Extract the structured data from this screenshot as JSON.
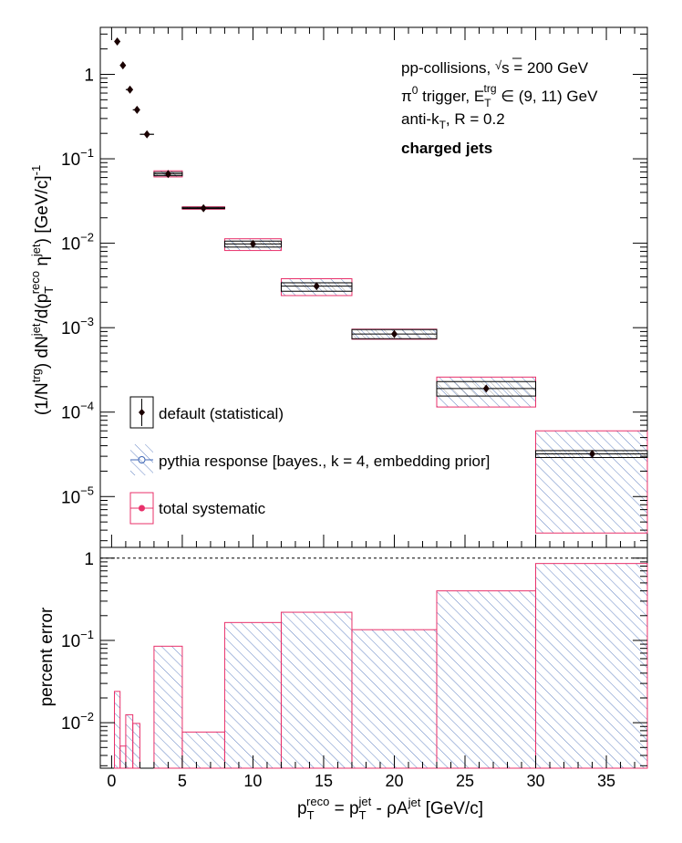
{
  "chart_data": [
    {
      "type": "scatter",
      "panel": "spectrum",
      "yscale": "log",
      "xlim": [
        -0.8,
        37.9
      ],
      "ylim": [
        2.5e-06,
        3.6
      ],
      "xlabel": "",
      "ylabel": "(1/N^{trg}) dN^{jet}/d(p_{T}^{reco} η^{jet}) [GeV/c]^{-1}",
      "ylabel_parts": {
        "a": "(1/N",
        "a_sup": "trg",
        "b": ") dN",
        "b_sup": "jet",
        "c": "/d(p",
        "c_sub": "T",
        "c_sup": "reco",
        "d": " η",
        "d_sup": "jet",
        "e": ") [GeV/c]",
        "e_sup": "-1"
      },
      "y_ticks": [
        {
          "value": 1,
          "label": "1"
        },
        {
          "value": 0.1,
          "label": "10",
          "exp": "−1"
        },
        {
          "value": 0.01,
          "label": "10",
          "exp": "−2"
        },
        {
          "value": 0.001,
          "label": "10",
          "exp": "−3"
        },
        {
          "value": 0.0001,
          "label": "10",
          "exp": "−4"
        },
        {
          "value": 1e-05,
          "label": "10",
          "exp": "−5"
        }
      ],
      "annotations": {
        "line1_a": "pp-collisions, ",
        "line1_b": "s = 200 GeV",
        "line2_a": "π",
        "line2_a_sup": "0",
        "line2_b": " trigger, E",
        "line2_b_sub": "T",
        "line2_b_sup": "trg",
        "line2_c": " ∈ (9, 11) GeV",
        "line3_a": "anti-k",
        "line3_a_sub": "T",
        "line3_b": ", R = 0.2",
        "line4": "charged jets"
      },
      "legend": [
        {
          "label": "default (statistical)"
        },
        {
          "label": "pythia response [bayes., k = 4, embedding prior]"
        },
        {
          "label": "total systematic"
        }
      ],
      "legend_placement": "bottom-left",
      "points": [
        {
          "x": 0.4,
          "xlo": 0.2,
          "xhi": 0.6,
          "y": 2.45,
          "sys_lo": 2.45,
          "sys_hi": 2.45
        },
        {
          "x": 0.8,
          "xlo": 0.6,
          "xhi": 1.0,
          "y": 1.28,
          "sys_lo": 1.28,
          "sys_hi": 1.28
        },
        {
          "x": 1.3,
          "xlo": 1.0,
          "xhi": 1.5,
          "y": 0.66,
          "sys_lo": 0.66,
          "sys_hi": 0.66
        },
        {
          "x": 1.8,
          "xlo": 1.5,
          "xhi": 2.0,
          "y": 0.38,
          "sys_lo": 0.38,
          "sys_hi": 0.38
        },
        {
          "x": 2.5,
          "xlo": 2.0,
          "xhi": 3.0,
          "y": 0.195,
          "sys_lo": 0.195,
          "sys_hi": 0.195
        },
        {
          "x": 4.0,
          "xlo": 3.0,
          "xhi": 5.0,
          "y": 0.066,
          "sys_lo": 0.061,
          "sys_hi": 0.072
        },
        {
          "x": 6.5,
          "xlo": 5.0,
          "xhi": 8.0,
          "y": 0.026,
          "sys_lo": 0.0253,
          "sys_hi": 0.027
        },
        {
          "x": 10.0,
          "xlo": 8.0,
          "xhi": 12.0,
          "y": 0.0098,
          "sys_lo": 0.0082,
          "sys_hi": 0.0113
        },
        {
          "x": 14.5,
          "xlo": 12.0,
          "xhi": 17.0,
          "y": 0.0031,
          "sys_lo": 0.0024,
          "sys_hi": 0.0038
        },
        {
          "x": 20.0,
          "xlo": 17.0,
          "xhi": 23.0,
          "y": 0.00084,
          "sys_lo": 0.00073,
          "sys_hi": 0.00096
        },
        {
          "x": 26.5,
          "xlo": 23.0,
          "xhi": 30.0,
          "y": 0.00019,
          "sys_lo": 0.000115,
          "sys_hi": 0.00026
        },
        {
          "x": 34.0,
          "xlo": 30.0,
          "xhi": 37.9,
          "y": 3.2e-05,
          "sys_lo": 3.7e-06,
          "sys_hi": 6e-05
        }
      ],
      "stat_boxes": [
        {
          "xlo": 3.0,
          "xhi": 5.0,
          "ylo": 0.063,
          "yhi": 0.069
        },
        {
          "xlo": 5.0,
          "xhi": 8.0,
          "ylo": 0.0257,
          "yhi": 0.0266
        },
        {
          "xlo": 8.0,
          "xhi": 12.0,
          "ylo": 0.009,
          "yhi": 0.0106
        },
        {
          "xlo": 12.0,
          "xhi": 17.0,
          "ylo": 0.0027,
          "yhi": 0.0034
        },
        {
          "xlo": 17.0,
          "xhi": 23.0,
          "ylo": 0.00074,
          "yhi": 0.00095
        },
        {
          "xlo": 23.0,
          "xhi": 30.0,
          "ylo": 0.000155,
          "yhi": 0.00023
        },
        {
          "xlo": 30.0,
          "xhi": 37.9,
          "ylo": 2.9e-05,
          "yhi": 3.5e-05
        }
      ],
      "colors": {
        "marker": "#1a0000",
        "systematic": "#e8306a",
        "pythia": "#3c64b4",
        "stat": "#000000"
      }
    },
    {
      "type": "area",
      "panel": "ratio",
      "yscale": "log",
      "xlim": [
        -0.8,
        37.9
      ],
      "ylim": [
        0.0028,
        1.35
      ],
      "xlabel_parts": {
        "a": "p",
        "a_sub": "T",
        "a_sup": "reco",
        "b": " = p",
        "b_sub": "T",
        "b_sup": "jet",
        "c": " - ρA",
        "c_sup": "jet",
        "d": " [GeV/c]"
      },
      "ylabel": "percent error",
      "x_ticks": [
        {
          "value": 0,
          "label": "0"
        },
        {
          "value": 5,
          "label": "5"
        },
        {
          "value": 10,
          "label": "10"
        },
        {
          "value": 15,
          "label": "15"
        },
        {
          "value": 20,
          "label": "20"
        },
        {
          "value": 25,
          "label": "25"
        },
        {
          "value": 30,
          "label": "30"
        },
        {
          "value": 35,
          "label": "35"
        }
      ],
      "y_ticks": [
        {
          "value": 1,
          "label": "1"
        },
        {
          "value": 0.1,
          "label": "10",
          "exp": "−1"
        },
        {
          "value": 0.01,
          "label": "10",
          "exp": "−2"
        }
      ],
      "reference_line": 1,
      "bins": [
        {
          "xlo": 0.2,
          "xhi": 0.6,
          "value": 0.024
        },
        {
          "xlo": 0.6,
          "xhi": 1.0,
          "value": 0.0052
        },
        {
          "xlo": 1.0,
          "xhi": 1.5,
          "value": 0.0125
        },
        {
          "xlo": 1.5,
          "xhi": 2.0,
          "value": 0.0098
        },
        {
          "xlo": 2.0,
          "xhi": 3.0,
          "value": 0.0
        },
        {
          "xlo": 3.0,
          "xhi": 5.0,
          "value": 0.085
        },
        {
          "xlo": 5.0,
          "xhi": 8.0,
          "value": 0.0077
        },
        {
          "xlo": 8.0,
          "xhi": 12.0,
          "value": 0.165
        },
        {
          "xlo": 12.0,
          "xhi": 17.0,
          "value": 0.22
        },
        {
          "xlo": 17.0,
          "xhi": 23.0,
          "value": 0.135
        },
        {
          "xlo": 23.0,
          "xhi": 30.0,
          "value": 0.4
        },
        {
          "xlo": 30.0,
          "xhi": 37.9,
          "value": 0.86
        }
      ],
      "colors": {
        "outline": "#e8306a",
        "hatch": "#3c64b4"
      }
    }
  ]
}
